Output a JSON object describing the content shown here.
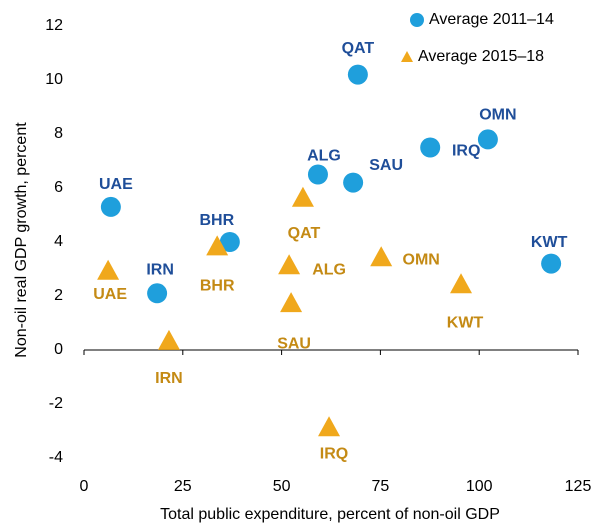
{
  "chart_data": {
    "type": "scatter",
    "x_label": "Total public expenditure, percent of non-oil GDP",
    "y_label": "Non-oil real GDP growth, percent",
    "xlim": [
      0,
      125
    ],
    "xticks": [
      0,
      25,
      50,
      75,
      100,
      125
    ],
    "ylim": [
      -4.5,
      12.5
    ],
    "yticks": [
      -4,
      -2,
      0,
      2,
      4,
      6,
      8,
      10,
      12
    ],
    "series": [
      {
        "name": "Average 2011–14",
        "color": "#1f9fdc",
        "label_color": "#1f4e99",
        "marker": "circle",
        "labels": [
          "UAE",
          "IRN",
          "BHR",
          "ALG",
          "SAU",
          "QAT",
          "IRQ",
          "OMN",
          "KWT"
        ],
        "x": [
          6.8,
          18.5,
          36.9,
          59.2,
          68.1,
          69.3,
          87.6,
          102.2,
          118.2
        ],
        "values": [
          5.3,
          2.1,
          4.0,
          6.5,
          6.2,
          10.2,
          7.5,
          7.8,
          3.2
        ]
      },
      {
        "name": "Average 2015–18",
        "color": "#f0a81c",
        "label_color": "#c48a14",
        "marker": "triangle",
        "labels": [
          "UAE",
          "IRN",
          "BHR",
          "QAT",
          "ALG",
          "SAU",
          "IRQ",
          "OMN",
          "KWT"
        ],
        "x": [
          6.1,
          21.5,
          33.7,
          55.4,
          51.9,
          52.4,
          62.0,
          75.2,
          95.4
        ],
        "values": [
          2.9,
          0.3,
          3.8,
          5.6,
          3.1,
          1.7,
          -2.9,
          3.4,
          2.4
        ]
      }
    ]
  }
}
